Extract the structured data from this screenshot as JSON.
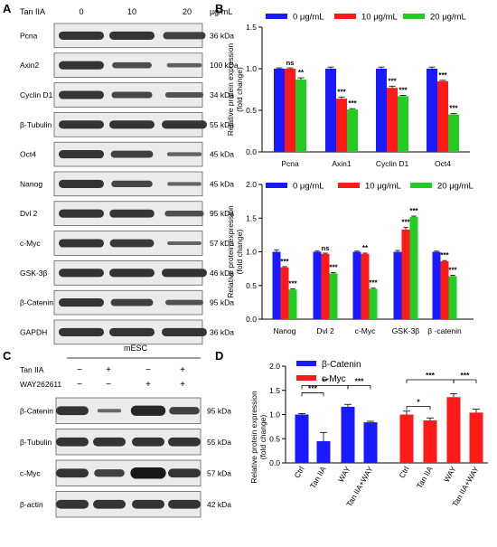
{
  "panels": {
    "A": {
      "letter": "A",
      "treatment_label": "Tan IIA",
      "doses": [
        "0",
        "10",
        "20"
      ],
      "unit": "µg/mL",
      "blots": [
        {
          "label": "Pcna",
          "kda": "36 kDa",
          "levels": [
            1.0,
            1.0,
            0.87
          ]
        },
        {
          "label": "Axin2",
          "kda": "100 kDa",
          "levels": [
            1.0,
            0.72,
            0.5
          ]
        },
        {
          "label": "Cyclin D1",
          "kda": "34 kDa",
          "levels": [
            1.0,
            0.78,
            0.66
          ]
        },
        {
          "label": "β-Tubulin",
          "kda": "55 kDa",
          "levels": [
            1.0,
            1.0,
            1.0
          ]
        },
        {
          "label": "Oct4",
          "kda": "45 kDa",
          "levels": [
            1.0,
            0.86,
            0.48
          ]
        },
        {
          "label": "Nanog",
          "kda": "45 kDa",
          "levels": [
            1.0,
            0.8,
            0.45
          ]
        },
        {
          "label": "Dvl 2",
          "kda": "95 kDa",
          "levels": [
            1.0,
            0.98,
            0.7
          ]
        },
        {
          "label": "c-Myc",
          "kda": "57 kDa",
          "levels": [
            1.0,
            0.95,
            0.45
          ]
        },
        {
          "label": "GSK-3β",
          "kda": "46 kDa",
          "levels": [
            1.0,
            1.0,
            1.0
          ]
        },
        {
          "label": "β-Catenin",
          "kda": "95 kDa",
          "levels": [
            1.0,
            0.86,
            0.64
          ]
        },
        {
          "label": "GAPDH",
          "kda": "36 kDa",
          "levels": [
            1.0,
            1.0,
            1.0
          ]
        }
      ]
    },
    "C": {
      "letter": "C",
      "group_label": "mESC",
      "row_labels": [
        "Tan IIA",
        "WAY262611"
      ],
      "signs": [
        [
          "−",
          "+",
          "−",
          "+"
        ],
        [
          "−",
          "−",
          "+",
          "+"
        ]
      ],
      "blots": [
        {
          "label": "β-Catenin",
          "kda": "95 kDa",
          "levels": [
            1.0,
            0.4,
            1.15,
            0.85
          ]
        },
        {
          "label": "β-Tubulin",
          "kda": "55 kDa",
          "levels": [
            1.0,
            1.0,
            1.0,
            1.0
          ]
        },
        {
          "label": "c-Myc",
          "kda": "57 kDa",
          "levels": [
            1.0,
            0.85,
            1.35,
            1.0
          ]
        },
        {
          "label": "β-actin",
          "kda": "42 kDa",
          "levels": [
            1.0,
            1.0,
            1.0,
            1.0
          ]
        }
      ]
    }
  },
  "colors": {
    "dose0": "#1a1aff",
    "dose10": "#ff1a1a",
    "dose20": "#22cc22",
    "catenin": "#1a1aff",
    "myc": "#ff1a1a"
  },
  "chart_data": [
    {
      "panel": "B",
      "type": "bar",
      "ylabel": "Relative protein expression",
      "ylabel2": "(fold change)",
      "ylim": [
        0,
        1.5
      ],
      "yticks": [
        "0.0",
        "0.5",
        "1.0",
        "1.5"
      ],
      "categories": [
        "Pcna",
        "Axin1",
        "Cyclin D1",
        "Oct4"
      ],
      "series": [
        {
          "name": "0 μg/mL",
          "values": [
            1.0,
            1.0,
            1.0,
            1.0
          ],
          "errors": [
            0.01,
            0.02,
            0.02,
            0.02
          ]
        },
        {
          "name": "10 μg/mL",
          "values": [
            1.0,
            0.64,
            0.77,
            0.85
          ],
          "errors": [
            0.01,
            0.02,
            0.02,
            0.01
          ]
        },
        {
          "name": "20 μg/mL",
          "values": [
            0.87,
            0.51,
            0.67,
            0.45
          ],
          "errors": [
            0.02,
            0.01,
            0.01,
            0.01
          ]
        }
      ],
      "significance": [
        [
          "",
          "ns",
          "**"
        ],
        [
          "",
          "***",
          "***"
        ],
        [
          "",
          "***",
          "***"
        ],
        [
          "",
          "***",
          "***"
        ]
      ],
      "legend": "top"
    },
    {
      "panel": "",
      "type": "bar",
      "ylabel": "Relative protein expression",
      "ylabel2": "(fold change)",
      "ylim": [
        0,
        2.0
      ],
      "yticks": [
        "0.0",
        "0.5",
        "1.0",
        "1.5",
        "2.0"
      ],
      "categories": [
        "Nanog",
        "Dvl 2",
        "c-Myc",
        "GSK-3β",
        "β -catenin"
      ],
      "series": [
        {
          "name": "0 μg/mL",
          "values": [
            1.0,
            1.0,
            1.0,
            1.0,
            1.0
          ],
          "errors": [
            0.03,
            0.01,
            0.01,
            0.02,
            0.01
          ]
        },
        {
          "name": "10 μg/mL",
          "values": [
            0.77,
            0.97,
            0.97,
            1.33,
            0.86
          ],
          "errors": [
            0.01,
            0.01,
            0.01,
            0.03,
            0.01
          ]
        },
        {
          "name": "20 μg/mL",
          "values": [
            0.44,
            0.68,
            0.45,
            1.52,
            0.64
          ],
          "errors": [
            0.01,
            0.01,
            0.01,
            0.01,
            0.01
          ]
        }
      ],
      "significance": [
        [
          "",
          "***",
          "***"
        ],
        [
          "",
          "ns",
          "***"
        ],
        [
          "",
          "**",
          "***"
        ],
        [
          "",
          "***",
          "***"
        ],
        [
          "",
          "***",
          "***"
        ]
      ],
      "legend": "top"
    },
    {
      "panel": "D",
      "type": "bar",
      "ylabel": "Relative protein expression",
      "ylabel2": "(fold change)",
      "ylim": [
        0,
        2.0
      ],
      "yticks": [
        "0.0",
        "0.5",
        "1.0",
        "1.5",
        "2.0"
      ],
      "categories": [
        "Ctrl",
        "Tan IIA",
        "WAY",
        "Tan IIA+WAY"
      ],
      "series": [
        {
          "name": "β-Catenin",
          "values": [
            1.0,
            0.45,
            1.16,
            0.84
          ],
          "errors": [
            0.02,
            0.18,
            0.05,
            0.02
          ]
        },
        {
          "name": "c-Myc",
          "values": [
            1.0,
            0.88,
            1.36,
            1.04
          ],
          "errors": [
            0.07,
            0.05,
            0.07,
            0.07
          ]
        }
      ],
      "comparisons": [
        {
          "series": 0,
          "from": 0,
          "to": 1,
          "label": "***",
          "y": 1.45
        },
        {
          "series": 0,
          "from": 0,
          "to": 2,
          "label": "**",
          "y": 1.6
        },
        {
          "series": 0,
          "from": 2,
          "to": 3,
          "label": "***",
          "y": 1.6
        },
        {
          "series": 1,
          "from": 0,
          "to": 1,
          "label": "*",
          "y": 1.17
        },
        {
          "series": 1,
          "from": 0,
          "to": 2,
          "label": "***",
          "y": 1.72
        },
        {
          "series": 1,
          "from": 2,
          "to": 3,
          "label": "***",
          "y": 1.72
        }
      ],
      "legend": "top-left"
    }
  ]
}
